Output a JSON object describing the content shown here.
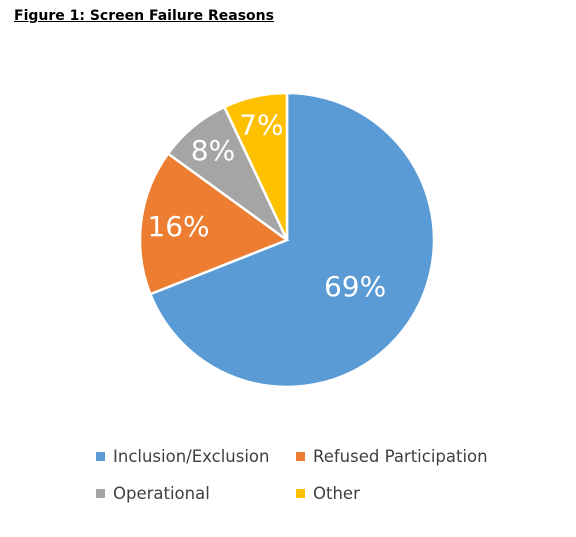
{
  "title": "Figure 1: Screen Failure Reasons",
  "chart_data": {
    "type": "pie",
    "title": "Figure 1: Screen Failure Reasons",
    "categories": [
      "Inclusion/Exclusion",
      "Refused Participation",
      "Operational",
      "Other"
    ],
    "values": [
      69,
      16,
      8,
      7
    ],
    "labels": [
      "69%",
      "16%",
      "8%",
      "7%"
    ],
    "colors": [
      "#5B9BD5",
      "#ED7D31",
      "#A5A5A5",
      "#FFC000"
    ],
    "legend_position": "bottom"
  }
}
